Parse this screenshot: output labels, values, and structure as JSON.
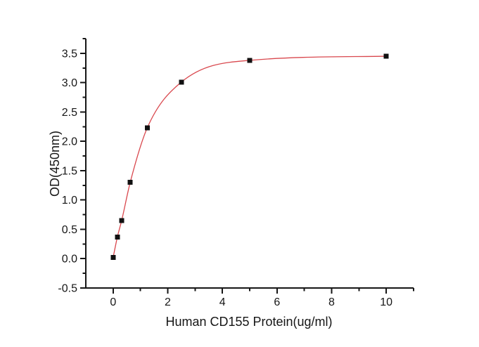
{
  "chart_data": {
    "type": "scatter",
    "title": "",
    "xlabel": "Human CD155 Protein(ug/ml)",
    "ylabel": "OD(450nm)",
    "xlim": [
      -1,
      11
    ],
    "ylim": [
      -0.5,
      3.75
    ],
    "grid": false,
    "legend": null,
    "x_major_ticks": {
      "values": [
        0,
        2,
        4,
        6,
        8,
        10
      ],
      "labels": [
        "0",
        "2",
        "4",
        "6",
        "8",
        "10"
      ]
    },
    "x_minor_ticks": [
      1,
      3,
      5,
      7,
      9,
      11
    ],
    "y_major_ticks": {
      "values": [
        -0.5,
        0.0,
        0.5,
        1.0,
        1.5,
        2.0,
        2.5,
        3.0,
        3.5
      ],
      "labels": [
        "-0.5",
        "0.0",
        "0.5",
        "1.0",
        "1.5",
        "2.0",
        "2.5",
        "3.0",
        "3.5"
      ]
    },
    "y_minor_ticks": [
      -0.25,
      0.25,
      0.75,
      1.25,
      1.75,
      2.25,
      2.75,
      3.25,
      3.75
    ],
    "series": [
      {
        "marker": "filled-square",
        "has_fit_curve": true,
        "x": [
          0,
          0.156,
          0.3125,
          0.625,
          1.25,
          2.5,
          5,
          10
        ],
        "y": [
          0.02,
          0.37,
          0.65,
          1.3,
          2.23,
          3.01,
          3.38,
          3.45
        ]
      }
    ],
    "colors": {
      "curve": "#d9484e",
      "marker": "#111111",
      "axis": "#161616",
      "background": "#ffffff"
    }
  }
}
